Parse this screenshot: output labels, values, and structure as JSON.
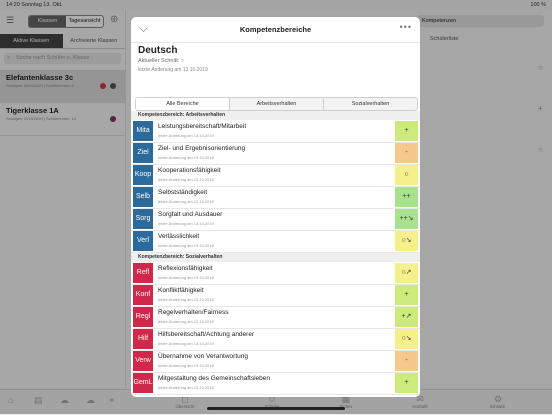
{
  "status": {
    "time_date": "14:20  Sonntag 13. Okt.",
    "battery": "100 %"
  },
  "left": {
    "segments": [
      "Klassen",
      "Tagesansicht"
    ],
    "tabs": [
      "Aktive Klassen",
      "Archivierte Klassen"
    ],
    "search_placeholder": "Suche nach Schüler o. Klasse",
    "classes": [
      {
        "name": "Elefantenklasse 3c",
        "sub": "Schuljahr 2019/2020 | Schülerinnen: 6"
      },
      {
        "name": "Tigerklasse 1A",
        "sub": "Schuljahr 2019/2020 | Schülerinnen: 14"
      }
    ]
  },
  "right": {
    "header_right": "Kompetenzen",
    "list_label": "Schülerliste"
  },
  "bottombar": {
    "items": [
      "Übersicht",
      "Schüler",
      "Noten",
      "Kontakt",
      "Einstell."
    ]
  },
  "modal": {
    "title": "Kompetenzbereiche",
    "subject": "Deutsch",
    "average": "Aktueller Schnitt: ○",
    "changed": "letzte Änderung am 13.10.2019",
    "tabs": [
      "Alle Bereiche",
      "Arbeitsverhalten",
      "Sozialverhalten"
    ],
    "section1": "Kompetenzbereich: Arbeitsverhalten",
    "section2": "Kompetenzbereich: Sozialverhalten",
    "rows1": [
      {
        "abbr": "Mita",
        "name": "Leistungsbereitschaft/Mitarbeit",
        "date": "letzte Änderung am 13.10.2019",
        "grade": "+",
        "color": "#2b6a9b",
        "gcolor": "#cdea7c"
      },
      {
        "abbr": "Ziel",
        "name": "Ziel- und Ergebnisorientierung",
        "date": "letzte Änderung am 13.10.2019",
        "grade": "-",
        "color": "#2b6a9b",
        "gcolor": "#f5c98c"
      },
      {
        "abbr": "Koop",
        "name": "Kooperationsfähigkeit",
        "date": "letzte Änderung am 13.10.2019",
        "grade": "○",
        "color": "#2b6a9b",
        "gcolor": "#f6f08c"
      },
      {
        "abbr": "Selb",
        "name": "Selbstständigkeit",
        "date": "letzte Änderung am 13.10.2019",
        "grade": "++",
        "color": "#2b6a9b",
        "gcolor": "#a9e28c"
      },
      {
        "abbr": "Sorg",
        "name": "Sorgfalt und Ausdauer",
        "date": "letzte Änderung am 13.10.2019",
        "grade": "++↘",
        "color": "#2b6a9b",
        "gcolor": "#a9e28c"
      },
      {
        "abbr": "Verl",
        "name": "Verlässlichkeit",
        "date": "letzte Änderung am 13.10.2019",
        "grade": "○↘",
        "color": "#2b6a9b",
        "gcolor": "#f6f08c"
      }
    ],
    "rows2": [
      {
        "abbr": "Refl",
        "name": "Reflexionsfähigkeit",
        "date": "letzte Änderung am 13.10.2019",
        "grade": "○↗",
        "color": "#d0284a",
        "gcolor": "#f6f08c"
      },
      {
        "abbr": "Konf",
        "name": "Konfliktfähigkeit",
        "date": "letzte Änderung am 13.10.2019",
        "grade": "+",
        "color": "#d0284a",
        "gcolor": "#cdea7c"
      },
      {
        "abbr": "Regl",
        "name": "Regelverhalten/Fairness",
        "date": "letzte Änderung am 13.10.2019",
        "grade": "+↗",
        "color": "#d0284a",
        "gcolor": "#cdea7c"
      },
      {
        "abbr": "Hilf",
        "name": "Hilfsbereitschaft/Achtung anderer",
        "date": "letzte Änderung am 13.10.2019",
        "grade": "○↘",
        "color": "#d0284a",
        "gcolor": "#f6f08c"
      },
      {
        "abbr": "Verw",
        "name": "Übernahme von Verantwortung",
        "date": "letzte Änderung am 13.10.2019",
        "grade": "-",
        "color": "#d0284a",
        "gcolor": "#f5c98c"
      },
      {
        "abbr": "GemL",
        "name": "Mitgestaltung des Gemeinschaftsleben",
        "date": "letzte Änderung am 13.10.2019",
        "grade": "+",
        "color": "#d0284a",
        "gcolor": "#cdea7c"
      }
    ]
  }
}
